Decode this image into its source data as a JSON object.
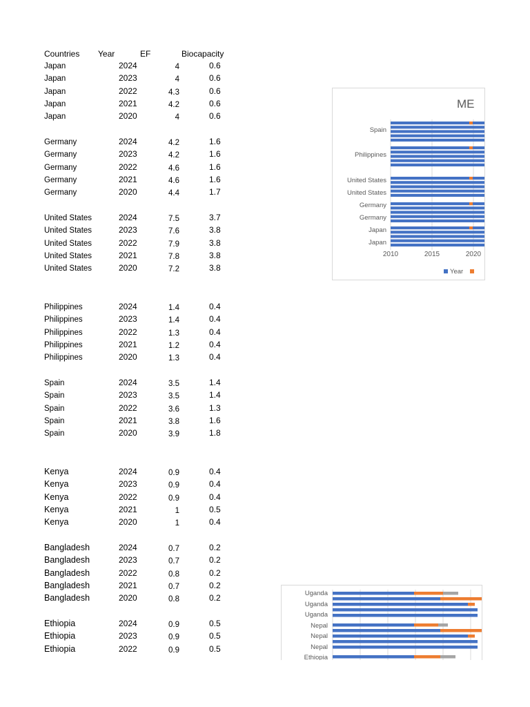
{
  "table": {
    "headers": {
      "countries": "Countries",
      "year": "Year",
      "ef": "EF",
      "biocapacity": "Biocapacity"
    },
    "groups": [
      {
        "rows": [
          {
            "country": "Japan",
            "year": "2024",
            "ef": "4",
            "bio": "0.6"
          },
          {
            "country": "Japan",
            "year": "2023",
            "ef": "4",
            "bio": "0.6"
          },
          {
            "country": "Japan",
            "year": "2022",
            "ef": "4.3",
            "bio": "0.6"
          },
          {
            "country": "Japan",
            "year": "2021",
            "ef": "4.2",
            "bio": "0.6"
          },
          {
            "country": "Japan",
            "year": "2020",
            "ef": "4",
            "bio": "0.6"
          }
        ]
      },
      {
        "rows": [
          {
            "country": "Germany",
            "year": "2024",
            "ef": "4.2",
            "bio": "1.6"
          },
          {
            "country": "Germany",
            "year": "2023",
            "ef": "4.2",
            "bio": "1.6"
          },
          {
            "country": "Germany",
            "year": "2022",
            "ef": "4.6",
            "bio": "1.6"
          },
          {
            "country": "Germany",
            "year": "2021",
            "ef": "4.6",
            "bio": "1.6"
          },
          {
            "country": "Germany",
            "year": "2020",
            "ef": "4.4",
            "bio": "1.7"
          }
        ]
      },
      {
        "rows": [
          {
            "country": "United States",
            "year": "2024",
            "ef": "7.5",
            "bio": "3.7"
          },
          {
            "country": "United States",
            "year": "2023",
            "ef": "7.6",
            "bio": "3.8"
          },
          {
            "country": "United States",
            "year": "2022",
            "ef": "7.9",
            "bio": "3.8"
          },
          {
            "country": "United States",
            "year": "2021",
            "ef": "7.8",
            "bio": "3.8"
          },
          {
            "country": "United States",
            "year": "2020",
            "ef": "7.2",
            "bio": "3.8"
          }
        ]
      },
      {
        "rows": [
          {
            "country": "Philippines",
            "year": "2024",
            "ef": "1.4",
            "bio": "0.4"
          },
          {
            "country": "Philippines",
            "year": "2023",
            "ef": "1.4",
            "bio": "0.4"
          },
          {
            "country": "Philippines",
            "year": "2022",
            "ef": "1.3",
            "bio": "0.4"
          },
          {
            "country": "Philippines",
            "year": "2021",
            "ef": "1.2",
            "bio": "0.4"
          },
          {
            "country": "Philippines",
            "year": "2020",
            "ef": "1.3",
            "bio": "0.4"
          }
        ]
      },
      {
        "rows": [
          {
            "country": "Spain",
            "year": "2024",
            "ef": "3.5",
            "bio": "1.4"
          },
          {
            "country": "Spain",
            "year": "2023",
            "ef": "3.5",
            "bio": "1.4"
          },
          {
            "country": "Spain",
            "year": "2022",
            "ef": "3.6",
            "bio": "1.3"
          },
          {
            "country": "Spain",
            "year": "2021",
            "ef": "3.8",
            "bio": "1.6"
          },
          {
            "country": "Spain",
            "year": "2020",
            "ef": "3.9",
            "bio": "1.8"
          }
        ]
      },
      {
        "rows": [
          {
            "country": "Kenya",
            "year": "2024",
            "ef": "0.9",
            "bio": "0.4"
          },
          {
            "country": "Kenya",
            "year": "2023",
            "ef": "0.9",
            "bio": "0.4"
          },
          {
            "country": "Kenya",
            "year": "2022",
            "ef": "0.9",
            "bio": "0.4"
          },
          {
            "country": "Kenya",
            "year": "2021",
            "ef": "1",
            "bio": "0.5"
          },
          {
            "country": "Kenya",
            "year": "2020",
            "ef": "1",
            "bio": "0.4"
          }
        ]
      },
      {
        "rows": [
          {
            "country": "Bangladesh",
            "year": "2024",
            "ef": "0.7",
            "bio": "0.2"
          },
          {
            "country": "Bangladesh",
            "year": "2023",
            "ef": "0.7",
            "bio": "0.2"
          },
          {
            "country": "Bangladesh",
            "year": "2022",
            "ef": "0.8",
            "bio": "0.2"
          },
          {
            "country": "Bangladesh",
            "year": "2021",
            "ef": "0.7",
            "bio": "0.2"
          },
          {
            "country": "Bangladesh",
            "year": "2020",
            "ef": "0.8",
            "bio": "0.2"
          }
        ]
      },
      {
        "rows": [
          {
            "country": "Ethiopia",
            "year": "2024",
            "ef": "0.9",
            "bio": "0.5"
          },
          {
            "country": "Ethiopia",
            "year": "2023",
            "ef": "0.9",
            "bio": "0.5"
          },
          {
            "country": "Ethiopia",
            "year": "2022",
            "ef": "0.9",
            "bio": "0.5"
          }
        ]
      }
    ]
  },
  "chart_data": [
    {
      "type": "bar",
      "orientation": "horizontal",
      "stacked": true,
      "title": "ME",
      "categories": [
        "Japan",
        "Japan",
        "Germany",
        "Germany",
        "United States",
        "United States",
        "Philippines",
        "Spain"
      ],
      "visible_category_labels": [
        "Spain",
        "Philippines",
        "United States",
        "United States",
        "Germany",
        "Germany",
        "Japan",
        "Japan"
      ],
      "x_ticks": [
        "2010",
        "2015",
        "2020"
      ],
      "xlim": [
        2010,
        2020
      ],
      "series": [
        {
          "name": "Year",
          "color": "#4472c4"
        },
        {
          "color": "#ed7d31"
        }
      ],
      "legend_placement": "bottom",
      "grid": true
    },
    {
      "type": "bar",
      "orientation": "horizontal",
      "stacked": true,
      "category_labels": [
        "Uganda",
        "Uganda",
        "Uganda",
        "Nepal",
        "Nepal",
        "Nepal",
        "Ethiopia"
      ],
      "series": [
        {
          "color": "#4472c4"
        },
        {
          "color": "#ed7d31"
        },
        {
          "color": "#a5a5a5"
        }
      ],
      "grid": true
    }
  ],
  "colors": {
    "blue": "#4472c4",
    "orange": "#ed7d31",
    "gray": "#a5a5a5",
    "grid": "#d9d9d9",
    "axis_text": "#595959"
  }
}
